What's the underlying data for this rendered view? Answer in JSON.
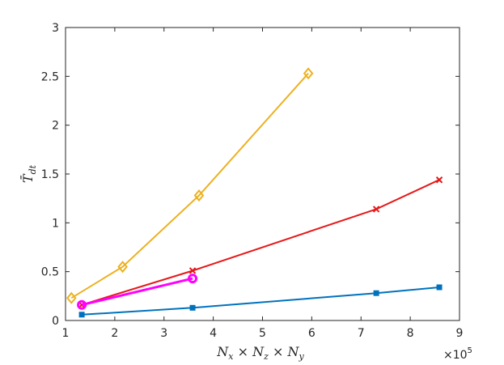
{
  "chart_data": {
    "type": "line",
    "title": "",
    "xlabel": "N_x × N_z × N_y",
    "ylabel": "T̄_dt",
    "x_exponent_label": "×10^5",
    "xlim": [
      1,
      9
    ],
    "ylim": [
      0,
      3
    ],
    "x_ticks": [
      "1",
      "2",
      "3",
      "4",
      "5",
      "6",
      "7",
      "8",
      "9"
    ],
    "y_ticks": [
      "0",
      "0.5",
      "1",
      "1.5",
      "2",
      "2.5",
      "3"
    ],
    "grid": false,
    "legend": false,
    "series": [
      {
        "color": "#0072BD",
        "marker": "square",
        "x": [
          1.33,
          3.58,
          7.31,
          8.59
        ],
        "y": [
          0.06,
          0.13,
          0.28,
          0.34
        ]
      },
      {
        "color": "#E61919",
        "marker": "x",
        "x": [
          1.33,
          3.58,
          7.31,
          8.59
        ],
        "y": [
          0.16,
          0.51,
          1.14,
          1.44
        ]
      },
      {
        "color": "#EDB120",
        "marker": "diamond",
        "x": [
          1.12,
          2.16,
          3.71,
          5.93
        ],
        "y": [
          0.23,
          0.55,
          1.28,
          2.53
        ]
      },
      {
        "color": "#FF00FF",
        "marker": "circle",
        "x": [
          1.33,
          3.58
        ],
        "y": [
          0.16,
          0.43
        ]
      }
    ]
  }
}
